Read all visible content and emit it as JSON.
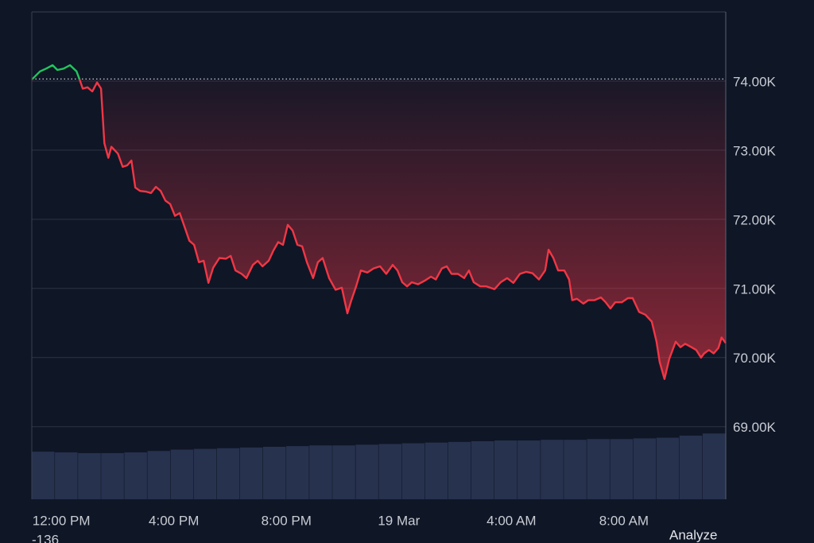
{
  "chart_data": {
    "type": "line",
    "x": [
      10.95,
      11.24,
      11.46,
      11.69,
      11.86,
      12.08,
      12.31,
      12.54,
      12.65,
      12.76,
      12.93,
      13.1,
      13.27,
      13.41,
      13.53,
      13.67,
      13.78,
      14.01,
      14.18,
      14.34,
      14.49,
      14.63,
      14.8,
      15.02,
      15.19,
      15.36,
      15.53,
      15.7,
      15.87,
      16.04,
      16.21,
      16.38,
      16.55,
      16.72,
      16.89,
      17.06,
      17.23,
      17.4,
      17.62,
      17.85,
      18.02,
      18.19,
      18.41,
      18.58,
      18.81,
      18.98,
      19.15,
      19.37,
      19.54,
      19.71,
      19.88,
      20.05,
      20.22,
      20.39,
      20.56,
      20.73,
      20.95,
      21.12,
      21.29,
      21.52,
      21.75,
      21.97,
      22.17,
      22.31,
      22.48,
      22.65,
      22.88,
      23.1,
      23.33,
      23.55,
      23.78,
      23.95,
      24.12,
      24.29,
      24.46,
      24.68,
      24.91,
      25.14,
      25.31,
      25.53,
      25.7,
      25.87,
      26.1,
      26.32,
      26.49,
      26.66,
      26.89,
      27.11,
      27.4,
      27.62,
      27.85,
      28.07,
      28.3,
      28.53,
      28.75,
      28.98,
      29.2,
      29.32,
      29.49,
      29.66,
      29.88,
      30.05,
      30.16,
      30.33,
      30.56,
      30.73,
      30.95,
      31.18,
      31.35,
      31.52,
      31.69,
      31.92,
      32.14,
      32.31,
      32.54,
      32.76,
      32.99,
      33.16,
      33.27,
      33.44,
      33.61,
      33.84,
      34.01,
      34.18,
      34.4,
      34.57,
      34.74,
      34.85,
      35.02,
      35.19,
      35.36,
      35.47,
      35.62
    ],
    "values": [
      74020,
      74140,
      74180,
      74230,
      74160,
      74180,
      74230,
      74140,
      74020,
      73890,
      73910,
      73850,
      73980,
      73890,
      73100,
      72890,
      73050,
      72950,
      72760,
      72780,
      72850,
      72460,
      72410,
      72400,
      72380,
      72470,
      72410,
      72270,
      72220,
      72050,
      72090,
      71890,
      71690,
      71630,
      71380,
      71400,
      71080,
      71300,
      71440,
      71430,
      71470,
      71260,
      71210,
      71150,
      71340,
      71400,
      71320,
      71400,
      71550,
      71670,
      71630,
      71920,
      71840,
      71630,
      71610,
      71380,
      71150,
      71380,
      71440,
      71150,
      70980,
      71010,
      70640,
      70830,
      71030,
      71260,
      71230,
      71290,
      71320,
      71210,
      71340,
      71260,
      71090,
      71030,
      71090,
      71060,
      71110,
      71170,
      71130,
      71290,
      71320,
      71210,
      71210,
      71150,
      71260,
      71090,
      71030,
      71030,
      70990,
      71090,
      71150,
      71080,
      71210,
      71240,
      71220,
      71130,
      71260,
      71560,
      71440,
      71260,
      71260,
      71130,
      70830,
      70850,
      70780,
      70830,
      70830,
      70870,
      70800,
      70710,
      70800,
      70800,
      70860,
      70860,
      70660,
      70620,
      70520,
      70230,
      69940,
      69690,
      69980,
      70230,
      70150,
      70200,
      70150,
      70110,
      70000,
      70060,
      70110,
      70060,
      70140,
      70290,
      70210
    ],
    "baseline": 74030,
    "up_color": "#22c55e",
    "down_color": "#f23645",
    "xlim": [
      10.95,
      35.62
    ],
    "ylim": [
      67950,
      75000
    ],
    "xticks": [
      {
        "value": 12,
        "label": "12:00 PM"
      },
      {
        "value": 16,
        "label": "4:00 PM"
      },
      {
        "value": 20,
        "label": "8:00 PM"
      },
      {
        "value": 24,
        "label": "19 Mar"
      },
      {
        "value": 28,
        "label": "4:00 AM"
      },
      {
        "value": 32,
        "label": "8:00 AM"
      }
    ],
    "yticks": [
      {
        "value": 74000,
        "label": "74.00K"
      },
      {
        "value": 73000,
        "label": "73.00K"
      },
      {
        "value": 72000,
        "label": "72.00K"
      },
      {
        "value": 71000,
        "label": "71.00K"
      },
      {
        "value": 70000,
        "label": "70.00K"
      },
      {
        "value": 69000,
        "label": "69.00K"
      }
    ],
    "grid": true,
    "volume": {
      "color": "#27324f",
      "ylim": [
        0,
        100
      ],
      "values": [
        68,
        67,
        66,
        66,
        67,
        69,
        71,
        72,
        73,
        74,
        75,
        76,
        77,
        77,
        78,
        79,
        80,
        81,
        82,
        83,
        84,
        84,
        85,
        85,
        86,
        86,
        87,
        88,
        91,
        94
      ]
    }
  },
  "footer": {
    "left_label": "-136",
    "right_label": "Analyze"
  }
}
